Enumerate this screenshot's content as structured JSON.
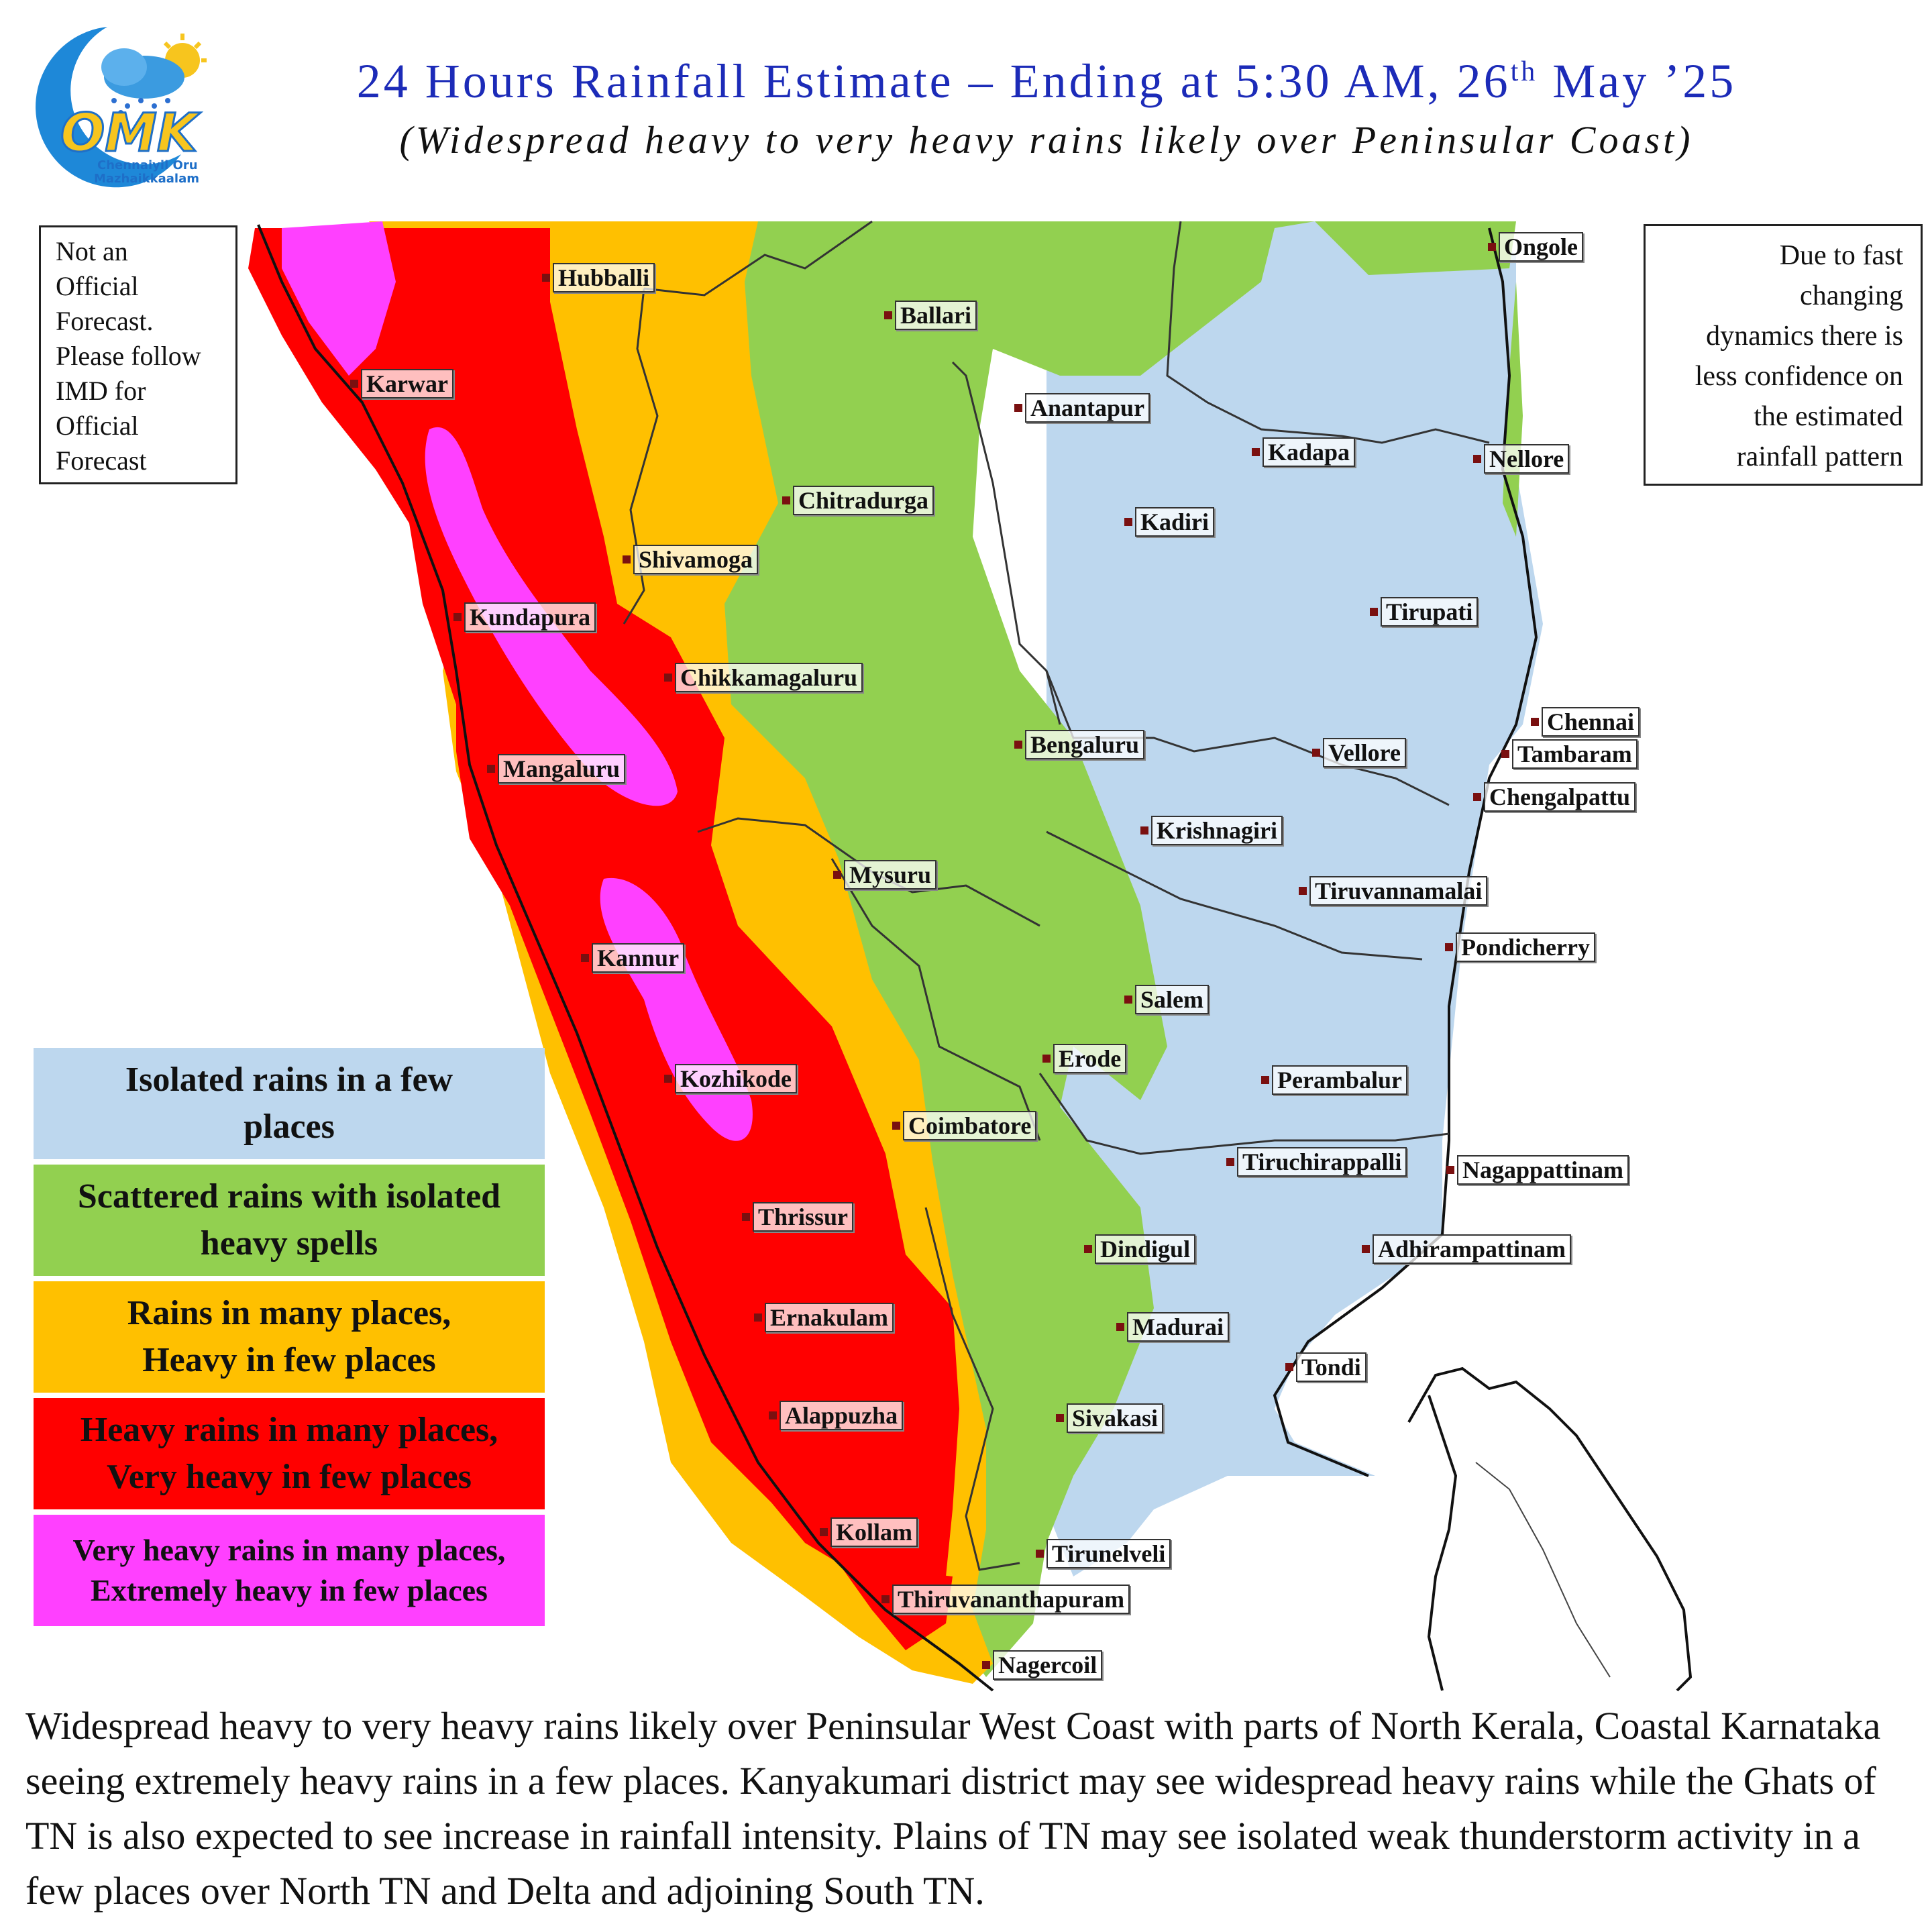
{
  "header": {
    "title_main": "24 Hours Rainfall Estimate – Ending at 5:30 AM, 26",
    "title_sup": "th",
    "title_end": " May ’25",
    "subtitle": "(Widespread heavy to very heavy rains likely over Peninsular Coast)"
  },
  "logo": {
    "letters": "OMK",
    "line1": "Chennaiyil Oru",
    "line2": "Mazhaikkaalam"
  },
  "notes": {
    "left_lines": [
      "Not an",
      "Official",
      "Forecast.",
      "Please follow",
      "IMD for",
      "Official",
      "Forecast"
    ],
    "right_lines": [
      "Due to fast",
      "changing",
      "dynamics there is",
      "less confidence on",
      "the estimated",
      "rainfall pattern"
    ]
  },
  "legend": [
    {
      "label_1": "Isolated rains in a few",
      "label_2": "places",
      "color": "#bdd7ee"
    },
    {
      "label_1": "Scattered rains with isolated",
      "label_2": "heavy spells",
      "color": "#92d050"
    },
    {
      "label_1": "Rains in many places,",
      "label_2": "Heavy in few places",
      "color": "#ffc000"
    },
    {
      "label_1": "Heavy rains in many places,",
      "label_2": "Very heavy in few places",
      "color": "#ff0000"
    },
    {
      "label_1": "Very heavy rains in many places,",
      "label_2": "Extremely heavy in few places",
      "color": "#ff40ff"
    }
  ],
  "cities": [
    {
      "name": "Hubballi"
    },
    {
      "name": "Karwar"
    },
    {
      "name": "Ballari"
    },
    {
      "name": "Ongole"
    },
    {
      "name": "Anantapur"
    },
    {
      "name": "Kadapa"
    },
    {
      "name": "Nellore"
    },
    {
      "name": "Chitradurga"
    },
    {
      "name": "Kadiri"
    },
    {
      "name": "Shivamoga"
    },
    {
      "name": "Kundapura"
    },
    {
      "name": "Tirupati"
    },
    {
      "name": "Chikkamagaluru"
    },
    {
      "name": "Chennai"
    },
    {
      "name": "Bengaluru"
    },
    {
      "name": "Vellore"
    },
    {
      "name": "Tambaram"
    },
    {
      "name": "Mangaluru"
    },
    {
      "name": "Chengalpattu"
    },
    {
      "name": "Krishnagiri"
    },
    {
      "name": "Mysuru"
    },
    {
      "name": "Tiruvannamalai"
    },
    {
      "name": "Pondicherry"
    },
    {
      "name": "Kannur"
    },
    {
      "name": "Salem"
    },
    {
      "name": "Erode"
    },
    {
      "name": "Kozhikode"
    },
    {
      "name": "Perambalur"
    },
    {
      "name": "Coimbatore"
    },
    {
      "name": "Tiruchirappalli"
    },
    {
      "name": "Nagappattinam"
    },
    {
      "name": "Thrissur"
    },
    {
      "name": "Dindigul"
    },
    {
      "name": "Adhirampattinam"
    },
    {
      "name": "Ernakulam"
    },
    {
      "name": "Madurai"
    },
    {
      "name": "Tondi"
    },
    {
      "name": "Alappuzha"
    },
    {
      "name": "Sivakasi"
    },
    {
      "name": "Kollam"
    },
    {
      "name": "Tirunelveli"
    },
    {
      "name": "Thiruvananthapuram"
    },
    {
      "name": "Nagercoil"
    }
  ],
  "summary": "Widespread heavy to very heavy rains likely over Peninsular West Coast with parts of North Kerala, Coastal Karnataka seeing extremely heavy rains in a few places.  Kanyakumari district may see widespread heavy rains while the Ghats of TN is also expected to see increase in rainfall intensity. Plains of TN may see isolated weak thunderstorm activity in a few places over North TN and Delta and adjoining South TN."
}
